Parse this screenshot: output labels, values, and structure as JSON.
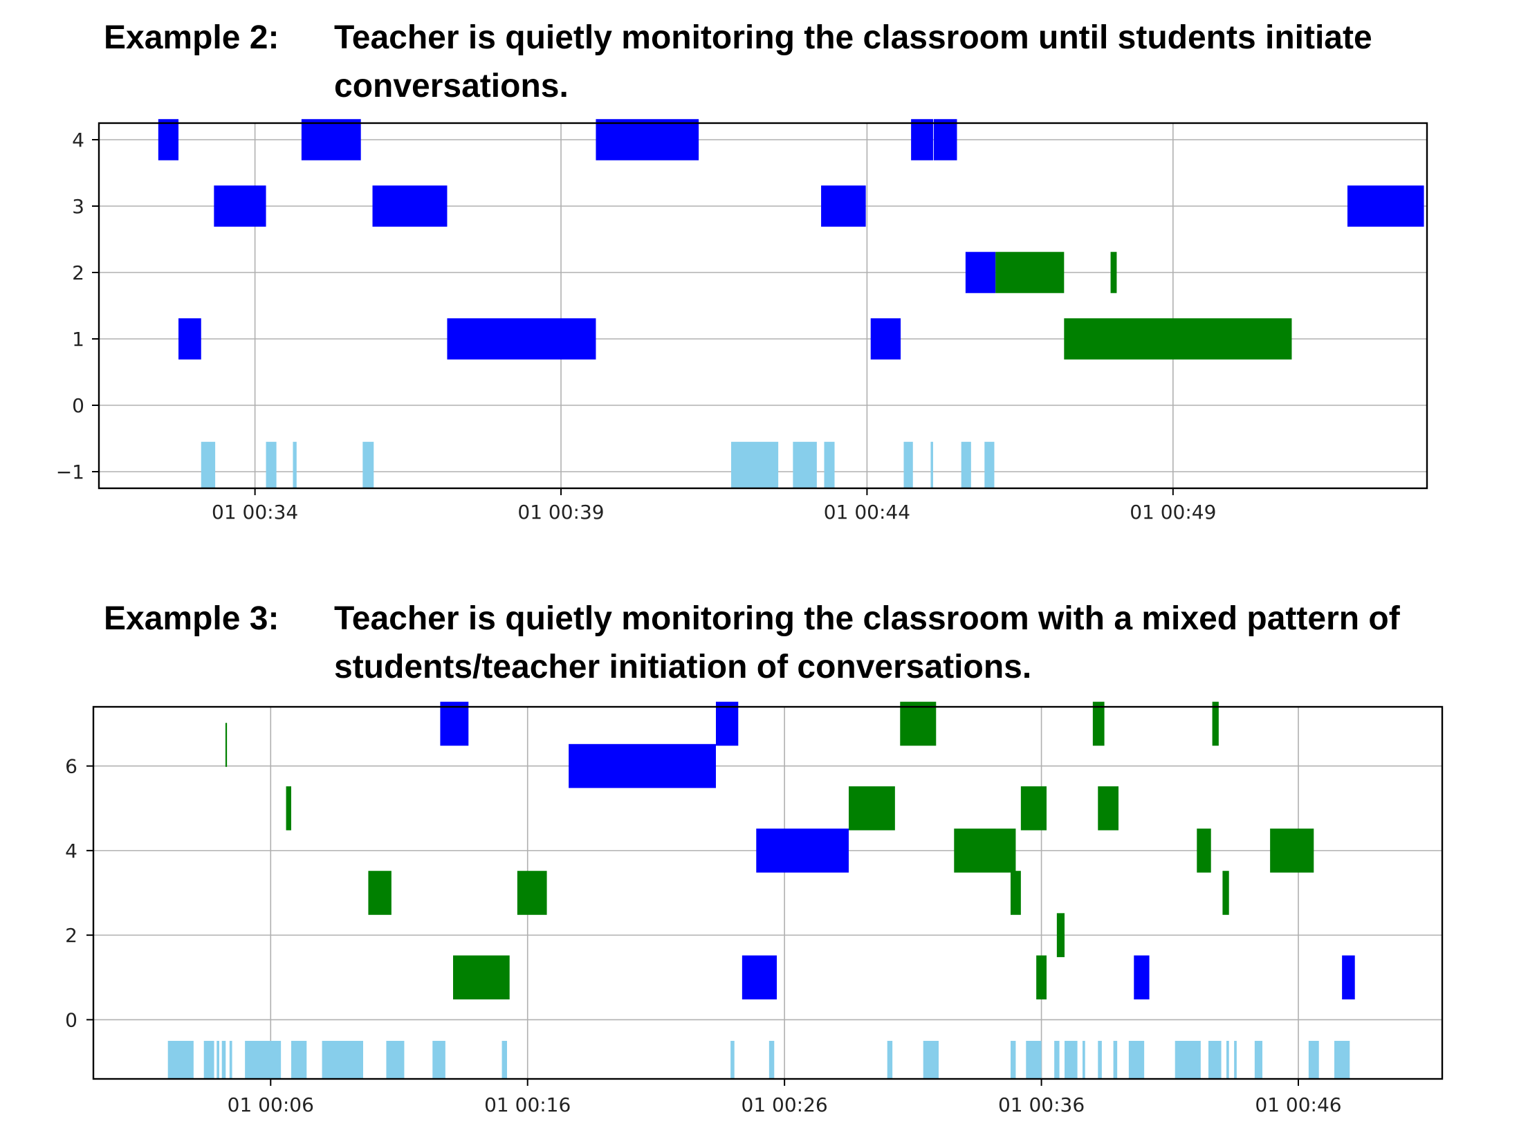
{
  "colors": {
    "teacher": "#0000ff",
    "student": "#008000",
    "audio": "#87ceeb",
    "grid": "#b0b0b0",
    "axis": "#000000"
  },
  "charts": [
    {
      "heading": "Example 2:",
      "caption": "Teacher is quietly monitoring the classroom until students initiate conversations."
    },
    {
      "heading": "Example 3:",
      "caption": "Teacher is quietly monitoring the classroom with a mixed pattern of students/teacher initiation of conversations."
    }
  ],
  "chart_data": [
    {
      "type": "bar",
      "orientation": "horizontal-timeline",
      "x_unit": "seconds",
      "xlim": [
        31.45,
        53.15
      ],
      "ylim": [
        -1.25,
        4.25
      ],
      "xticks": [
        34,
        39,
        44,
        49
      ],
      "xtick_labels": [
        "01 00:34",
        "01 00:39",
        "01 00:44",
        "01 00:49"
      ],
      "yticks": [
        -1,
        0,
        1,
        2,
        3,
        4
      ],
      "ytick_labels": [
        "−1",
        "0",
        "1",
        "2",
        "3",
        "4"
      ],
      "grid": true,
      "bar_height": 0.62,
      "series": [
        {
          "color_key": "teacher",
          "bars": [
            {
              "y": 4,
              "start": 32.42,
              "end": 32.75
            },
            {
              "y": 4,
              "start": 34.76,
              "end": 35.73
            },
            {
              "y": 4,
              "start": 39.57,
              "end": 41.25
            },
            {
              "y": 4,
              "start": 44.72,
              "end": 45.08
            },
            {
              "y": 4,
              "start": 45.09,
              "end": 45.47
            },
            {
              "y": 3,
              "start": 33.33,
              "end": 34.18
            },
            {
              "y": 3,
              "start": 35.92,
              "end": 37.14
            },
            {
              "y": 3,
              "start": 43.25,
              "end": 43.98
            },
            {
              "y": 3,
              "start": 51.85,
              "end": 53.1
            },
            {
              "y": 2,
              "start": 45.61,
              "end": 46.1
            },
            {
              "y": 1,
              "start": 32.75,
              "end": 33.12
            },
            {
              "y": 1,
              "start": 37.14,
              "end": 39.57
            },
            {
              "y": 1,
              "start": 44.06,
              "end": 44.55
            }
          ]
        },
        {
          "color_key": "student",
          "bars": [
            {
              "y": 2,
              "start": 46.1,
              "end": 47.22
            },
            {
              "y": 2,
              "start": 47.98,
              "end": 48.08
            },
            {
              "y": 1,
              "start": 47.22,
              "end": 50.94
            }
          ]
        }
      ],
      "activity": {
        "color_key": "audio",
        "y_from": -1.25,
        "y_to": -0.55,
        "spans": [
          [
            33.12,
            33.35
          ],
          [
            34.18,
            34.35
          ],
          [
            34.62,
            34.68
          ],
          [
            35.76,
            35.94
          ],
          [
            41.78,
            42.55
          ],
          [
            42.79,
            43.18
          ],
          [
            43.3,
            43.47
          ],
          [
            44.6,
            44.75
          ],
          [
            45.04,
            45.08
          ],
          [
            45.54,
            45.7
          ],
          [
            45.92,
            46.08
          ]
        ]
      }
    },
    {
      "type": "bar",
      "orientation": "horizontal-timeline",
      "x_unit": "seconds",
      "xlim": [
        -0.9,
        51.6
      ],
      "ylim": [
        -1.4,
        7.4
      ],
      "xticks": [
        6,
        16,
        26,
        36,
        46
      ],
      "xtick_labels": [
        "01 00:06",
        "01 00:16",
        "01 00:26",
        "01 00:36",
        "01 00:46"
      ],
      "yticks": [
        0,
        2,
        4,
        6
      ],
      "ytick_labels": [
        "0",
        "2",
        "4",
        "6"
      ],
      "grid": true,
      "bar_height": 1.04,
      "series": [
        {
          "color_key": "teacher",
          "bars": [
            {
              "y": 7,
              "start": 12.6,
              "end": 13.7
            },
            {
              "y": 7,
              "start": 23.33,
              "end": 24.2
            },
            {
              "y": 6,
              "start": 17.6,
              "end": 23.33
            },
            {
              "y": 4,
              "start": 24.9,
              "end": 28.5
            },
            {
              "y": 1,
              "start": 24.35,
              "end": 25.7
            },
            {
              "y": 1,
              "start": 39.6,
              "end": 40.2
            },
            {
              "y": 1,
              "start": 47.7,
              "end": 48.2
            }
          ]
        },
        {
          "color_key": "student",
          "bars": [
            {
              "y": 6.5,
              "start": 4.24,
              "end": 4.3
            },
            {
              "y": 5,
              "start": 6.6,
              "end": 6.8
            },
            {
              "y": 3,
              "start": 9.8,
              "end": 10.7
            },
            {
              "y": 3,
              "start": 15.6,
              "end": 16.75
            },
            {
              "y": 1,
              "start": 13.1,
              "end": 15.3
            },
            {
              "y": 7,
              "start": 30.5,
              "end": 31.9
            },
            {
              "y": 7,
              "start": 38.0,
              "end": 38.45
            },
            {
              "y": 7,
              "start": 42.65,
              "end": 42.9
            },
            {
              "y": 5,
              "start": 28.5,
              "end": 30.3
            },
            {
              "y": 5,
              "start": 35.2,
              "end": 36.2
            },
            {
              "y": 5,
              "start": 38.2,
              "end": 39.0
            },
            {
              "y": 4,
              "start": 32.6,
              "end": 35.0
            },
            {
              "y": 4,
              "start": 42.05,
              "end": 42.6
            },
            {
              "y": 4,
              "start": 44.9,
              "end": 46.6
            },
            {
              "y": 3,
              "start": 34.8,
              "end": 35.2
            },
            {
              "y": 3,
              "start": 43.05,
              "end": 43.3
            },
            {
              "y": 2,
              "start": 36.6,
              "end": 36.9
            },
            {
              "y": 1,
              "start": 35.8,
              "end": 36.2
            }
          ]
        }
      ],
      "activity": {
        "color_key": "audio",
        "y_from": -1.4,
        "y_to": -0.5,
        "spans": [
          [
            2.0,
            3.0
          ],
          [
            3.4,
            3.8
          ],
          [
            3.9,
            4.0
          ],
          [
            4.1,
            4.25
          ],
          [
            4.4,
            4.5
          ],
          [
            5.0,
            6.4
          ],
          [
            6.8,
            7.4
          ],
          [
            8.0,
            9.6
          ],
          [
            10.5,
            11.2
          ],
          [
            12.3,
            12.8
          ],
          [
            15.0,
            15.2
          ],
          [
            23.9,
            24.05
          ],
          [
            25.4,
            25.6
          ],
          [
            30.0,
            30.2
          ],
          [
            31.4,
            32.0
          ],
          [
            34.8,
            35.0
          ],
          [
            35.4,
            36.0
          ],
          [
            36.5,
            36.7
          ],
          [
            36.9,
            37.4
          ],
          [
            37.6,
            37.7
          ],
          [
            38.2,
            38.35
          ],
          [
            38.8,
            38.95
          ],
          [
            39.4,
            40.0
          ],
          [
            41.2,
            42.2
          ],
          [
            42.5,
            43.0
          ],
          [
            43.2,
            43.3
          ],
          [
            43.5,
            43.6
          ],
          [
            44.3,
            44.6
          ],
          [
            46.4,
            46.8
          ],
          [
            47.4,
            48.0
          ]
        ]
      }
    }
  ]
}
